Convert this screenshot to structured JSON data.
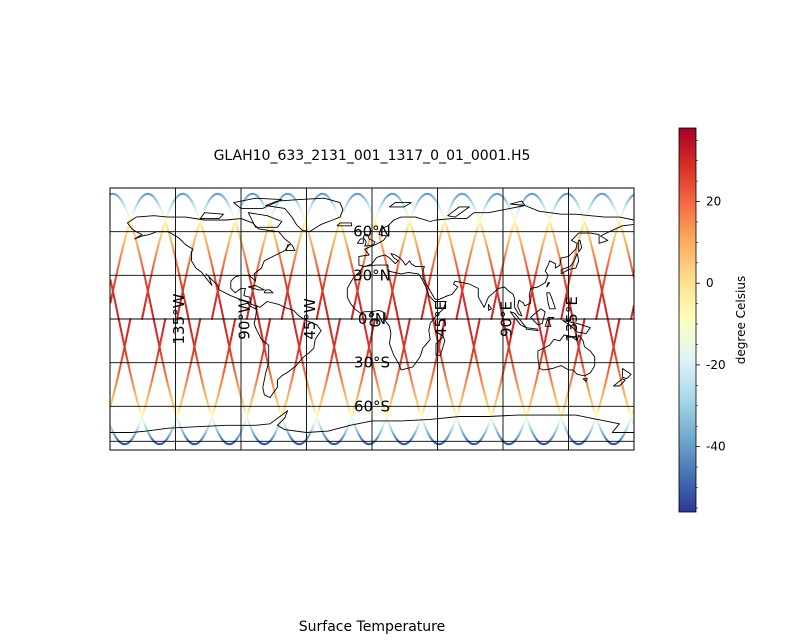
{
  "figure": {
    "title": "GLAH10_633_2131_001_1317_0_01_0001.H5",
    "caption": "Surface Temperature"
  },
  "map": {
    "projection": "plate carree",
    "extent": {
      "lon": [
        -180,
        180
      ],
      "lat": [
        -90,
        90
      ]
    },
    "gridlines": {
      "lon": [
        -135,
        -90,
        -45,
        0,
        45,
        90,
        135
      ],
      "lat": [
        -60,
        -30,
        0,
        30,
        60
      ]
    },
    "lon_labels": [
      "135°W",
      "90°W",
      "45°W",
      "0°",
      "45°E",
      "90°E",
      "135°E"
    ],
    "lat_labels": [
      "60°N",
      "30°N",
      "0°N",
      "30°S",
      "60°S"
    ],
    "coastline_color": "#000000",
    "gridline_color": "#000000"
  },
  "chart_data": {
    "type": "scatter",
    "variable": "Surface Temperature",
    "description_unit": "degree Celsius",
    "orbit_tracks": {
      "count": 15,
      "max_latitude": 86,
      "note": "sinusoidal satellite ground tracks colored by temperature"
    },
    "colorbar": {
      "label": "degree Celsius",
      "range": [
        -56,
        38
      ],
      "ticks": [
        20,
        0,
        -20,
        -40
      ],
      "tick_labels": [
        "20",
        "0",
        "-20",
        "-40"
      ],
      "colormap": "RdYlBu_r",
      "colors": [
        "#313695",
        "#4575b4",
        "#74add1",
        "#abd9e9",
        "#e0f3f8",
        "#ffffbf",
        "#fee090",
        "#fdae61",
        "#f46d43",
        "#d73027",
        "#a50026"
      ]
    }
  }
}
